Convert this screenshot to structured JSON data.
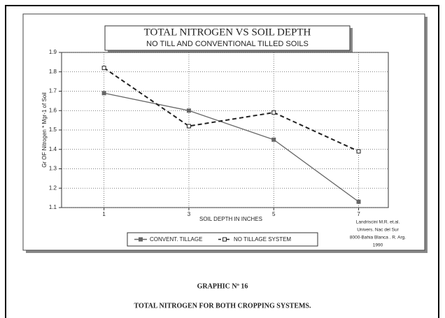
{
  "chart_data": {
    "type": "line",
    "title": "TOTAL NITROGEN VS SOIL DEPTH",
    "subtitle": "NO TILL AND CONVENTIONAL TILLED SOILS",
    "x_label": "SOIL DEPTH IN INCHES",
    "y_label": "Gr OF Nitrogen * Mgr-1 of Soil",
    "x": [
      1,
      3,
      5,
      7
    ],
    "xlim": [
      0,
      7.7
    ],
    "xticks": [
      1,
      3,
      5,
      7
    ],
    "ylim": [
      1.1,
      1.9
    ],
    "yticks": [
      1.1,
      1.2,
      1.3,
      1.4,
      1.5,
      1.6,
      1.7,
      1.8,
      1.9
    ],
    "grid": true,
    "series": [
      {
        "name": "CONVENT. TILLAGE",
        "color": "#666666",
        "dashed": false,
        "values": [
          1.69,
          1.6,
          1.45,
          1.13
        ]
      },
      {
        "name": "NO TILLAGE SYSTEM",
        "color": "#222222",
        "dashed": true,
        "values": [
          1.82,
          1.52,
          1.59,
          1.39
        ]
      }
    ],
    "annotation": [
      "Landriscini M.R. et.al.",
      "Univers. Nac del Sur",
      "8000-Bahia Blanca . R. Arg.",
      "1990"
    ],
    "caption": {
      "label": "GRAPHIC Nº 16",
      "text": "TOTAL NITROGEN FOR BOTH CROPPING SYSTEMS."
    }
  }
}
